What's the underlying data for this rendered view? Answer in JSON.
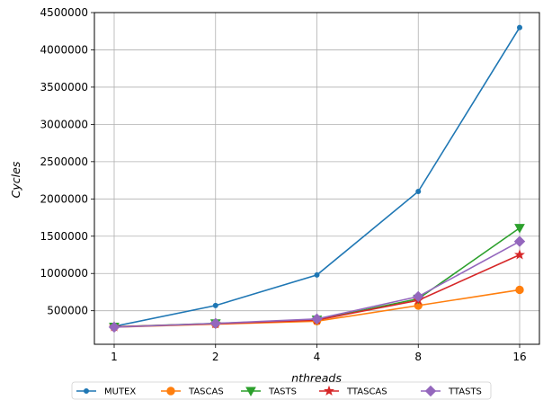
{
  "chart_data": {
    "type": "line",
    "x": [
      "1",
      "2",
      "4",
      "8",
      "16"
    ],
    "xlabel": "nthreads",
    "ylabel": "Cycles",
    "ylim": [
      50000,
      4500000
    ],
    "yticks": [
      "500000",
      "1000000",
      "1500000",
      "2000000",
      "2500000",
      "3000000",
      "3500000",
      "4000000",
      "4500000"
    ],
    "grid": true,
    "legend_position": "bottom-center",
    "series": [
      {
        "name": "MUTEX",
        "color": "#1f77b4",
        "marker": "circle-small",
        "values": [
          290000,
          570000,
          980000,
          2100000,
          4300000
        ]
      },
      {
        "name": "TASCAS",
        "color": "#ff7f0e",
        "marker": "circle",
        "values": [
          280000,
          320000,
          360000,
          570000,
          780000
        ]
      },
      {
        "name": "TASTS",
        "color": "#2ca02c",
        "marker": "triangle-down",
        "values": [
          285000,
          330000,
          380000,
          660000,
          1610000
        ]
      },
      {
        "name": "TTASCAS",
        "color": "#d62728",
        "marker": "star",
        "values": [
          285000,
          325000,
          375000,
          640000,
          1250000
        ]
      },
      {
        "name": "TTASTS",
        "color": "#9467bd",
        "marker": "diamond",
        "values": [
          280000,
          330000,
          390000,
          690000,
          1430000
        ]
      }
    ]
  }
}
